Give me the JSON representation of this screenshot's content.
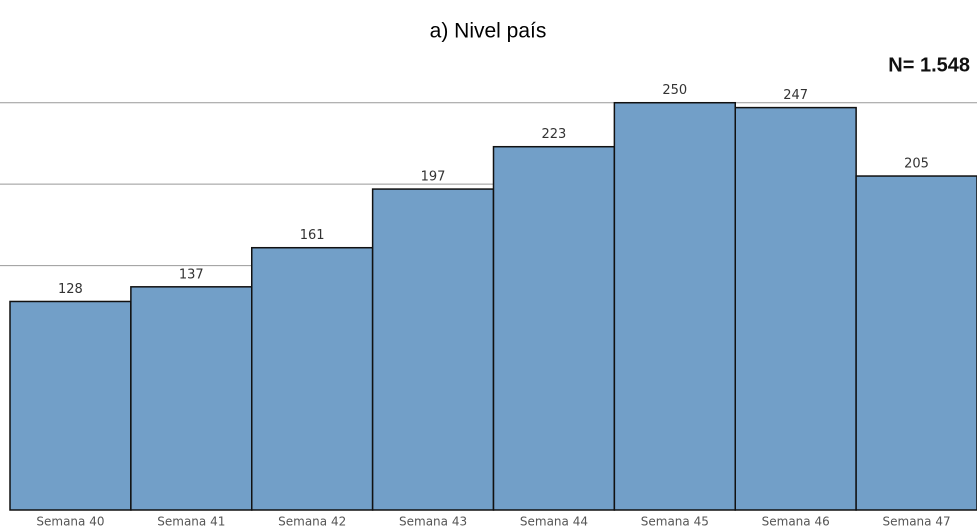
{
  "chart_data": {
    "type": "bar",
    "title": "a)  Nivel país",
    "annotation": "N= 1.548",
    "categories": [
      "Semana 40",
      "Semana 41",
      "Semana 42",
      "Semana 43",
      "Semana 44",
      "Semana 45",
      "Semana 46",
      "Semana 47"
    ],
    "values": [
      128,
      137,
      161,
      197,
      223,
      250,
      247,
      205
    ],
    "color": "#729fc8",
    "ylim": [
      0,
      275
    ],
    "yticks": [
      150,
      200,
      250
    ],
    "grid": true
  }
}
